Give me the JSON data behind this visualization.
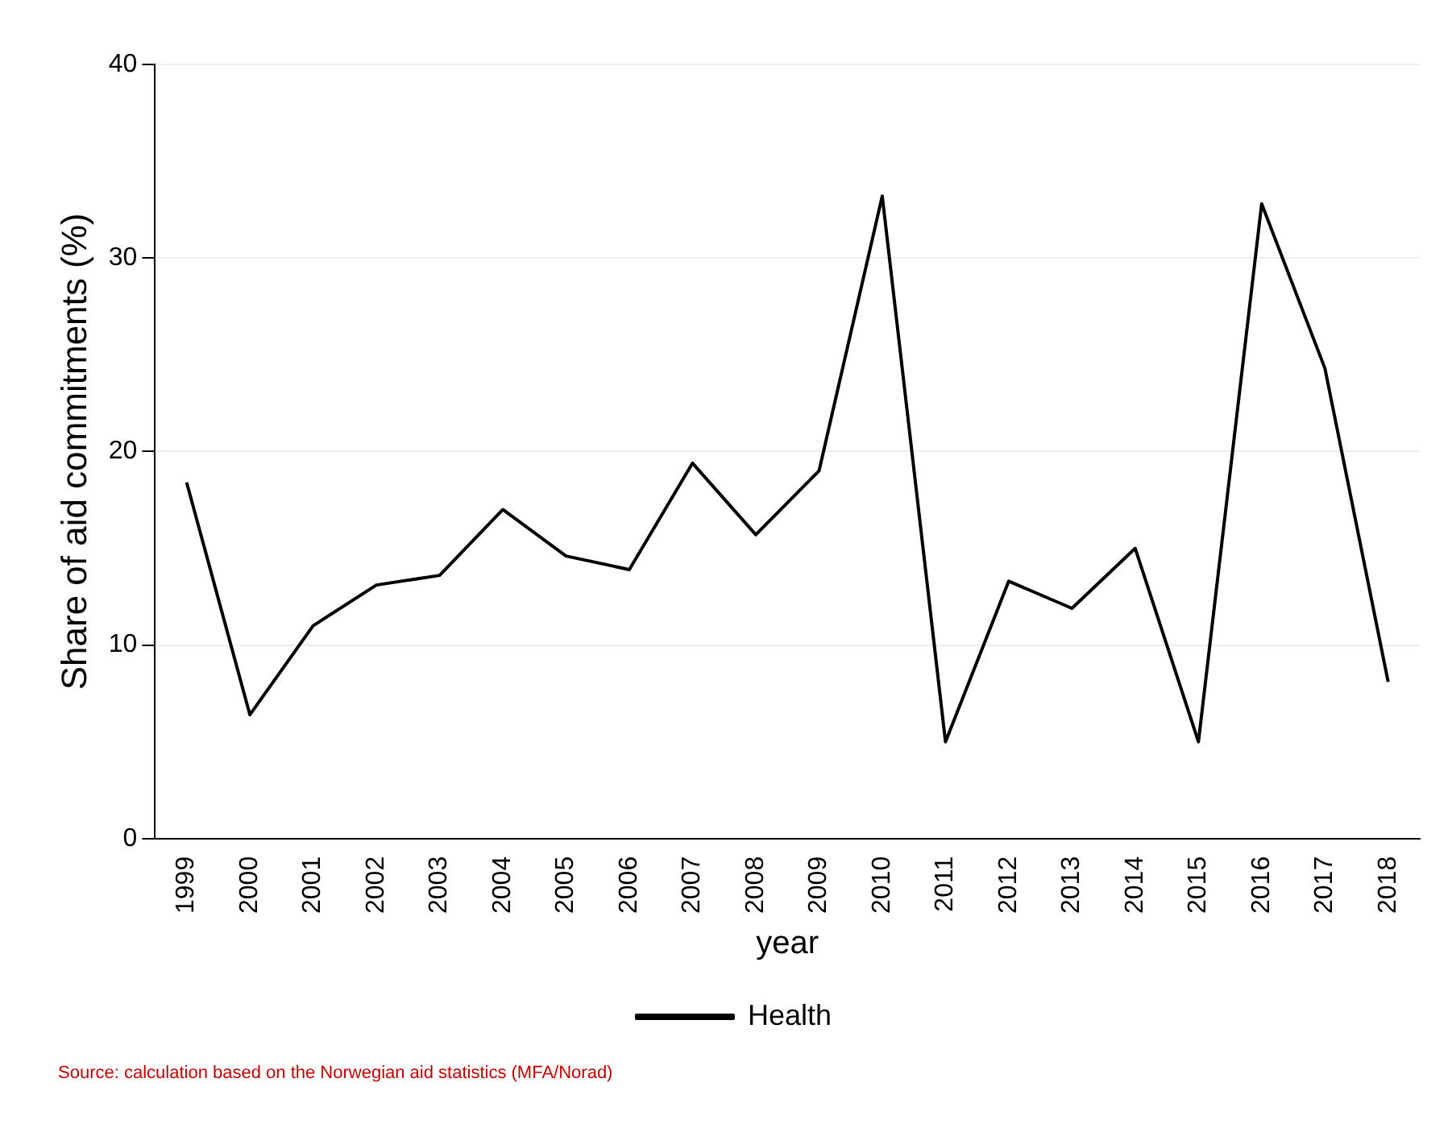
{
  "chart_data": {
    "type": "line",
    "xlabel": "year",
    "ylabel": "Share of aid commitments (%)",
    "categories": [
      "1999",
      "2000",
      "2001",
      "2002",
      "2003",
      "2004",
      "2005",
      "2006",
      "2007",
      "2008",
      "2009",
      "2010",
      "2011",
      "2012",
      "2013",
      "2014",
      "2015",
      "2016",
      "2017",
      "2018"
    ],
    "series": [
      {
        "name": "Health",
        "color": "#000000",
        "values": [
          18.4,
          6.4,
          11.0,
          13.1,
          13.6,
          17.0,
          14.6,
          13.9,
          19.4,
          15.7,
          19.0,
          33.2,
          5.0,
          13.3,
          11.9,
          15.0,
          5.0,
          32.8,
          24.3,
          8.1
        ]
      }
    ],
    "ylim": [
      0,
      40
    ],
    "yticks": [
      0,
      10,
      20,
      30,
      40
    ],
    "grid": "y",
    "legend": "bottom",
    "marker": "none",
    "line_style": "solid",
    "annotations": [
      "Source: calculation based on the Norwegian aid statistics (MFA/Norad)"
    ]
  }
}
